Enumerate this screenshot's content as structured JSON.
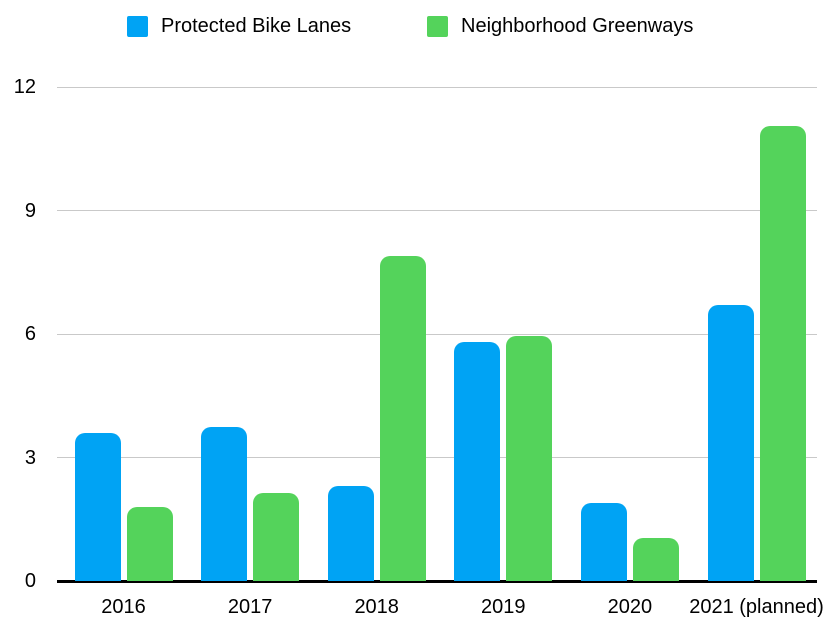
{
  "chart_data": {
    "type": "bar",
    "title": "",
    "categories": [
      "2016",
      "2017",
      "2018",
      "2019",
      "2020",
      "2021 (planned)"
    ],
    "series": [
      {
        "name": "Protected Bike Lanes",
        "color": "#00A3F4",
        "values": [
          3.6,
          3.75,
          2.3,
          5.8,
          1.9,
          6.7
        ]
      },
      {
        "name": "Neighborhood Greenways",
        "color": "#54D35B",
        "values": [
          1.8,
          2.15,
          7.9,
          5.95,
          1.05,
          11.05
        ]
      }
    ],
    "xlabel": "",
    "ylabel": "",
    "ylim": [
      0,
      12
    ],
    "yticks": [
      0,
      3,
      6,
      9,
      12
    ],
    "grid": true,
    "legend_position": "top",
    "colors": {
      "background": "#ffffff",
      "gridline": "#c9c9c9",
      "axis_line": "#000000",
      "text": "#000000"
    }
  }
}
